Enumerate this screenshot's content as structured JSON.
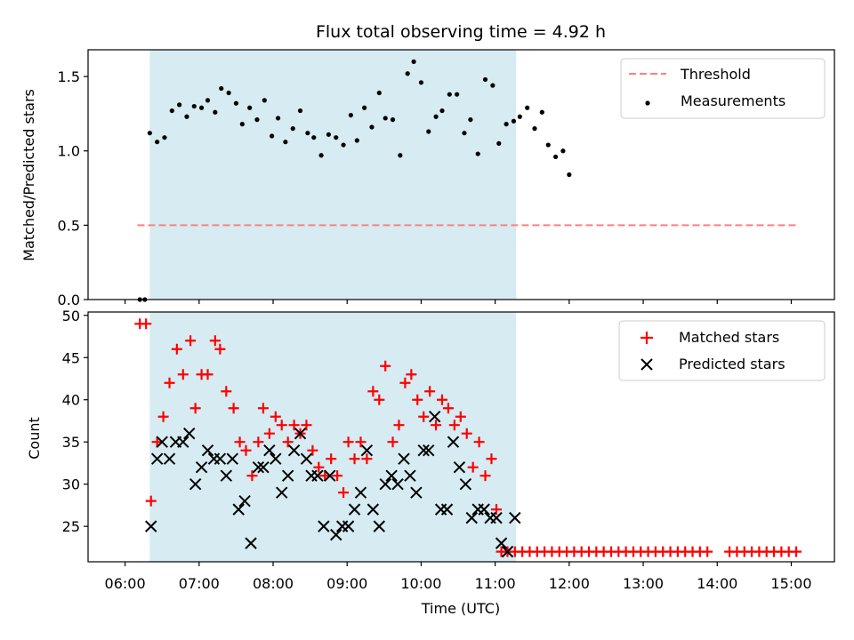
{
  "chart_data": [
    {
      "type": "scatter",
      "title": "Flux total observing time = 4.92 h",
      "xlabel": "",
      "ylabel": "Matched/Predicted stars",
      "ylim": [
        0,
        1.68
      ],
      "yticks": [
        "0.0",
        "0.5",
        "1.0",
        "1.5"
      ],
      "shaded_region": {
        "x_start": "06:20",
        "x_end": "11:17",
        "color": "#add8e6"
      },
      "legend": {
        "position": "top-right",
        "entries": [
          "Threshold",
          "Measurements"
        ]
      },
      "series": [
        {
          "name": "Threshold",
          "style": "dashed-line",
          "color": "#ff7f7f",
          "points": [
            [
              "06:10",
              0.5
            ],
            [
              "15:05",
              0.5
            ]
          ]
        },
        {
          "name": "Measurements",
          "style": "dot",
          "color": "#000000",
          "points": [
            [
              "06:12",
              0.0
            ],
            [
              "06:16",
              0.0
            ],
            [
              "06:20",
              1.12
            ],
            [
              "06:26",
              1.06
            ],
            [
              "06:32",
              1.09
            ],
            [
              "06:38",
              1.27
            ],
            [
              "06:44",
              1.31
            ],
            [
              "06:50",
              1.23
            ],
            [
              "06:56",
              1.3
            ],
            [
              "07:02",
              1.29
            ],
            [
              "07:07",
              1.34
            ],
            [
              "07:13",
              1.26
            ],
            [
              "07:18",
              1.42
            ],
            [
              "07:24",
              1.39
            ],
            [
              "07:30",
              1.32
            ],
            [
              "07:35",
              1.18
            ],
            [
              "07:41",
              1.29
            ],
            [
              "07:47",
              1.21
            ],
            [
              "07:53",
              1.34
            ],
            [
              "07:59",
              1.1
            ],
            [
              "08:04",
              1.22
            ],
            [
              "08:10",
              1.06
            ],
            [
              "08:16",
              1.15
            ],
            [
              "08:22",
              1.27
            ],
            [
              "08:28",
              1.12
            ],
            [
              "08:33",
              1.09
            ],
            [
              "08:39",
              0.97
            ],
            [
              "08:45",
              1.11
            ],
            [
              "08:51",
              1.09
            ],
            [
              "08:57",
              1.04
            ],
            [
              "09:03",
              1.24
            ],
            [
              "09:08",
              1.07
            ],
            [
              "09:14",
              1.29
            ],
            [
              "09:20",
              1.16
            ],
            [
              "09:26",
              1.39
            ],
            [
              "09:31",
              1.22
            ],
            [
              "09:37",
              1.21
            ],
            [
              "09:43",
              0.97
            ],
            [
              "09:49",
              1.52
            ],
            [
              "09:54",
              1.6
            ],
            [
              "10:00",
              1.46
            ],
            [
              "10:06",
              1.13
            ],
            [
              "10:12",
              1.23
            ],
            [
              "10:17",
              1.27
            ],
            [
              "10:23",
              1.38
            ],
            [
              "10:29",
              1.38
            ],
            [
              "10:35",
              1.12
            ],
            [
              "10:40",
              1.21
            ],
            [
              "10:46",
              0.98
            ],
            [
              "10:52",
              1.48
            ],
            [
              "10:58",
              1.44
            ],
            [
              "11:03",
              1.05
            ],
            [
              "11:09",
              1.18
            ],
            [
              "11:15",
              1.2
            ],
            [
              "11:20",
              1.23
            ],
            [
              "11:26",
              1.29
            ],
            [
              "11:32",
              1.15
            ],
            [
              "11:38",
              1.26
            ],
            [
              "11:43",
              1.04
            ],
            [
              "11:49",
              0.96
            ],
            [
              "11:55",
              1.0
            ],
            [
              "12:00",
              0.84
            ]
          ]
        }
      ]
    },
    {
      "type": "scatter",
      "title": "",
      "xlabel": "Time (UTC)",
      "ylabel": "Count",
      "ylim": [
        20.8,
        50.4
      ],
      "yticks": [
        "25",
        "30",
        "35",
        "40",
        "45",
        "50"
      ],
      "xticks": [
        "06:00",
        "07:00",
        "08:00",
        "09:00",
        "10:00",
        "11:00",
        "12:00",
        "13:00",
        "14:00",
        "15:00"
      ],
      "shaded_region": {
        "x_start": "06:20",
        "x_end": "11:17",
        "color": "#add8e6"
      },
      "legend": {
        "position": "top-right",
        "entries": [
          "Matched stars",
          "Predicted stars"
        ]
      },
      "series": [
        {
          "name": "Matched stars",
          "marker": "plus",
          "color": "#ff0000",
          "points": [
            [
              "06:12",
              49
            ],
            [
              "06:17",
              49
            ],
            [
              "06:21",
              28
            ],
            [
              "06:26",
              35
            ],
            [
              "06:31",
              38
            ],
            [
              "06:36",
              42
            ],
            [
              "06:42",
              46
            ],
            [
              "06:47",
              43
            ],
            [
              "06:53",
              47
            ],
            [
              "06:57",
              39
            ],
            [
              "07:02",
              43
            ],
            [
              "07:07",
              43
            ],
            [
              "07:13",
              47
            ],
            [
              "07:17",
              46
            ],
            [
              "07:22",
              41
            ],
            [
              "07:28",
              39
            ],
            [
              "07:33",
              35
            ],
            [
              "07:38",
              34
            ],
            [
              "07:43",
              31
            ],
            [
              "07:48",
              35
            ],
            [
              "07:52",
              39
            ],
            [
              "07:57",
              36
            ],
            [
              "08:02",
              38
            ],
            [
              "08:07",
              37
            ],
            [
              "08:12",
              35
            ],
            [
              "08:17",
              37
            ],
            [
              "08:22",
              36
            ],
            [
              "08:27",
              37
            ],
            [
              "08:32",
              34
            ],
            [
              "08:37",
              32
            ],
            [
              "08:42",
              31
            ],
            [
              "08:47",
              33
            ],
            [
              "08:52",
              31
            ],
            [
              "08:57",
              29
            ],
            [
              "09:01",
              35
            ],
            [
              "09:06",
              33
            ],
            [
              "09:11",
              35
            ],
            [
              "09:16",
              33
            ],
            [
              "09:21",
              41
            ],
            [
              "09:26",
              40
            ],
            [
              "09:31",
              44
            ],
            [
              "09:37",
              35
            ],
            [
              "09:42",
              37
            ],
            [
              "09:47",
              42
            ],
            [
              "09:52",
              43
            ],
            [
              "09:57",
              40
            ],
            [
              "10:02",
              38
            ],
            [
              "10:07",
              41
            ],
            [
              "10:12",
              37
            ],
            [
              "10:17",
              40
            ],
            [
              "10:22",
              39
            ],
            [
              "10:27",
              37
            ],
            [
              "10:32",
              38
            ],
            [
              "10:37",
              36
            ],
            [
              "10:42",
              32
            ],
            [
              "10:47",
              35
            ],
            [
              "10:52",
              31
            ],
            [
              "10:57",
              33
            ],
            [
              "11:01",
              27
            ],
            [
              "11:05",
              22
            ],
            [
              "11:10",
              22
            ],
            [
              "11:16",
              22
            ],
            [
              "11:22",
              22
            ],
            [
              "11:28",
              22
            ],
            [
              "11:34",
              22
            ],
            [
              "11:40",
              22
            ],
            [
              "11:46",
              22
            ],
            [
              "11:52",
              22
            ],
            [
              "11:58",
              22
            ],
            [
              "12:04",
              22
            ],
            [
              "12:10",
              22
            ],
            [
              "12:16",
              22
            ],
            [
              "12:22",
              22
            ],
            [
              "12:28",
              22
            ],
            [
              "12:34",
              22
            ],
            [
              "12:40",
              22
            ],
            [
              "12:46",
              22
            ],
            [
              "12:52",
              22
            ],
            [
              "12:58",
              22
            ],
            [
              "13:04",
              22
            ],
            [
              "13:10",
              22
            ],
            [
              "13:16",
              22
            ],
            [
              "13:22",
              22
            ],
            [
              "13:28",
              22
            ],
            [
              "13:34",
              22
            ],
            [
              "13:40",
              22
            ],
            [
              "13:46",
              22
            ],
            [
              "13:52",
              22
            ],
            [
              "14:10",
              22
            ],
            [
              "14:16",
              22
            ],
            [
              "14:22",
              22
            ],
            [
              "14:28",
              22
            ],
            [
              "14:34",
              22
            ],
            [
              "14:40",
              22
            ],
            [
              "14:46",
              22
            ],
            [
              "14:52",
              22
            ],
            [
              "14:58",
              22
            ],
            [
              "15:04",
              22
            ]
          ]
        },
        {
          "name": "Predicted stars",
          "marker": "x",
          "color": "#000000",
          "points": [
            [
              "06:21",
              25
            ],
            [
              "06:26",
              33
            ],
            [
              "06:30",
              35
            ],
            [
              "06:36",
              33
            ],
            [
              "06:41",
              35
            ],
            [
              "06:47",
              35
            ],
            [
              "06:52",
              36
            ],
            [
              "06:57",
              30
            ],
            [
              "07:02",
              32
            ],
            [
              "07:07",
              34
            ],
            [
              "07:12",
              33
            ],
            [
              "07:17",
              33
            ],
            [
              "07:22",
              31
            ],
            [
              "07:27",
              33
            ],
            [
              "07:32",
              27
            ],
            [
              "07:37",
              28
            ],
            [
              "07:42",
              23
            ],
            [
              "07:48",
              32
            ],
            [
              "07:52",
              32
            ],
            [
              "07:57",
              34
            ],
            [
              "08:02",
              33
            ],
            [
              "08:07",
              29
            ],
            [
              "08:12",
              31
            ],
            [
              "08:17",
              34
            ],
            [
              "08:22",
              36
            ],
            [
              "08:27",
              33
            ],
            [
              "08:31",
              31
            ],
            [
              "08:36",
              31
            ],
            [
              "08:41",
              25
            ],
            [
              "08:46",
              31
            ],
            [
              "08:51",
              24
            ],
            [
              "08:56",
              25
            ],
            [
              "09:01",
              25
            ],
            [
              "09:06",
              27
            ],
            [
              "09:11",
              29
            ],
            [
              "09:16",
              34
            ],
            [
              "09:21",
              27
            ],
            [
              "09:26",
              25
            ],
            [
              "09:31",
              30
            ],
            [
              "09:36",
              31
            ],
            [
              "09:41",
              30
            ],
            [
              "09:46",
              33
            ],
            [
              "09:51",
              31
            ],
            [
              "09:56",
              29
            ],
            [
              "10:02",
              34
            ],
            [
              "10:06",
              34
            ],
            [
              "10:11",
              38
            ],
            [
              "10:16",
              27
            ],
            [
              "10:21",
              27
            ],
            [
              "10:26",
              35
            ],
            [
              "10:31",
              32
            ],
            [
              "10:36",
              30
            ],
            [
              "10:41",
              26
            ],
            [
              "10:46",
              27
            ],
            [
              "10:51",
              27
            ],
            [
              "10:56",
              26
            ],
            [
              "11:01",
              26
            ],
            [
              "11:05",
              23
            ],
            [
              "11:10",
              22
            ],
            [
              "11:16",
              26
            ]
          ]
        }
      ]
    }
  ]
}
